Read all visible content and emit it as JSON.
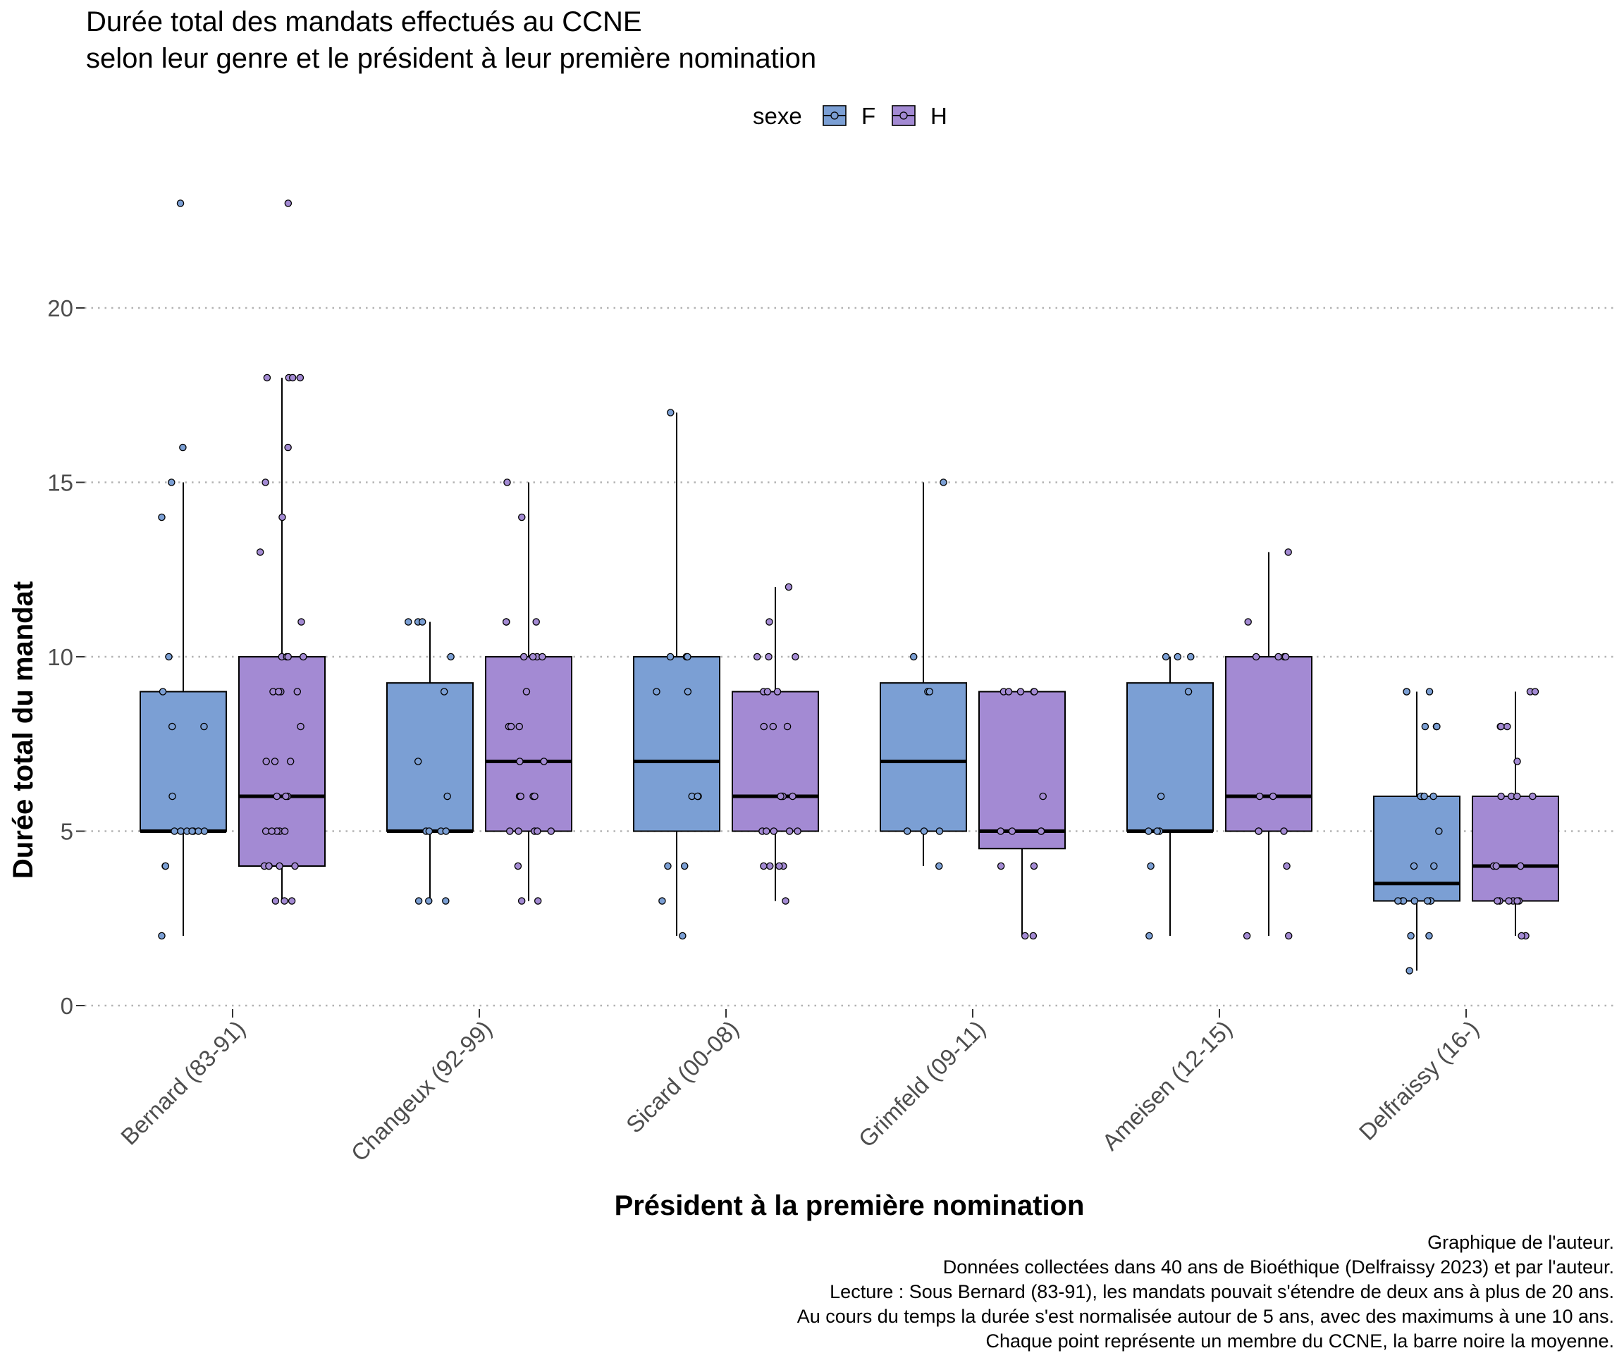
{
  "chart_data": {
    "type": "boxplot",
    "title": "Durée total des mandats effectués au CCNE",
    "subtitle": "selon leur genre et le président à leur première nomination",
    "xlabel": "Président à la première nomination",
    "ylabel": "Durée total du mandat",
    "ylim": [
      0,
      23
    ],
    "yticks": [
      0,
      5,
      10,
      15,
      20
    ],
    "grid": "horizontal-dotted",
    "legend": {
      "title": "sexe",
      "placement": "top-center",
      "entries": [
        {
          "key": "F",
          "label": "F",
          "color": "#7b9fd4"
        },
        {
          "key": "H",
          "label": "H",
          "color": "#a38ad3"
        }
      ]
    },
    "categories": [
      "Bernard (83-91)",
      "Changeux (92-99)",
      "Sicard (00-08)",
      "Grimfeld (09-11)",
      "Ameisen (12-15)",
      "Delfraissy (16-)"
    ],
    "series": [
      {
        "name": "F",
        "color": "#7b9fd4",
        "boxes": [
          {
            "min": 2,
            "q1": 5,
            "median": 5,
            "q3": 9,
            "max": 15
          },
          {
            "min": 3,
            "q1": 5,
            "median": 5,
            "q3": 9.25,
            "max": 11
          },
          {
            "min": 2,
            "q1": 5,
            "median": 7,
            "q3": 10,
            "max": 17
          },
          {
            "min": 4,
            "q1": 5,
            "median": 7,
            "q3": 9.25,
            "max": 15
          },
          {
            "min": 2,
            "q1": 5,
            "median": 5,
            "q3": 9.25,
            "max": 10
          },
          {
            "min": 1,
            "q1": 3,
            "median": 3.5,
            "q3": 6,
            "max": 9
          }
        ],
        "points": [
          [
            23,
            16,
            15,
            14,
            10,
            9,
            8,
            8,
            6,
            5,
            5,
            5,
            5,
            5,
            5,
            5,
            4,
            4,
            2
          ],
          [
            11,
            11,
            11,
            10,
            9,
            7,
            6,
            5,
            5,
            5,
            5,
            3,
            3,
            3
          ],
          [
            17,
            10,
            10,
            10,
            9,
            9,
            6,
            6,
            6,
            4,
            4,
            3,
            2
          ],
          [
            15,
            10,
            9,
            9,
            5,
            5,
            5,
            4
          ],
          [
            10,
            10,
            10,
            9,
            6,
            5,
            5,
            5,
            4,
            2
          ],
          [
            9,
            9,
            9,
            8,
            8,
            8,
            6,
            6,
            6,
            6,
            5,
            4,
            4,
            3,
            3,
            3,
            3,
            3,
            3,
            3,
            2,
            2,
            1
          ]
        ]
      },
      {
        "name": "H",
        "color": "#a38ad3",
        "boxes": [
          {
            "min": 3,
            "q1": 4,
            "median": 6,
            "q3": 10,
            "max": 18
          },
          {
            "min": 3,
            "q1": 5,
            "median": 7,
            "q3": 10,
            "max": 15
          },
          {
            "min": 3,
            "q1": 5,
            "median": 6,
            "q3": 9,
            "max": 12
          },
          {
            "min": 2,
            "q1": 4.5,
            "median": 5,
            "q3": 9,
            "max": 9
          },
          {
            "min": 2,
            "q1": 5,
            "median": 6,
            "q3": 10,
            "max": 13
          },
          {
            "min": 2,
            "q1": 3,
            "median": 4,
            "q3": 6,
            "max": 9
          }
        ],
        "points": [
          [
            23,
            18,
            18,
            18,
            18,
            16,
            15,
            14,
            13,
            11,
            10,
            10,
            10,
            10,
            9,
            9,
            9,
            9,
            8,
            7,
            7,
            7,
            6,
            6,
            6,
            5,
            5,
            5,
            5,
            5,
            4,
            4,
            4,
            4,
            4,
            3,
            3,
            3
          ],
          [
            15,
            14,
            11,
            11,
            11,
            10,
            10,
            10,
            10,
            9,
            8,
            8,
            8,
            7,
            7,
            6,
            6,
            6,
            6,
            5,
            5,
            5,
            5,
            5,
            4,
            3,
            3
          ],
          [
            12,
            11,
            10,
            10,
            10,
            9,
            9,
            9,
            8,
            8,
            8,
            6,
            6,
            6,
            6,
            5,
            5,
            5,
            5,
            5,
            4,
            4,
            4,
            4,
            3
          ],
          [
            9,
            9,
            9,
            9,
            9,
            6,
            5,
            5,
            5,
            5,
            4,
            4,
            2,
            2
          ],
          [
            13,
            11,
            10,
            10,
            10,
            10,
            6,
            6,
            5,
            5,
            5,
            4,
            2,
            2
          ],
          [
            9,
            9,
            8,
            8,
            8,
            7,
            6,
            6,
            6,
            6,
            4,
            4,
            4,
            3,
            3,
            3,
            3,
            3,
            3,
            2,
            2
          ]
        ]
      }
    ],
    "caption": [
      "Graphique de l'auteur.",
      "Données collectées dans 40 ans de Bioéthique (Delfraissy 2023) et par l'auteur.",
      "Lecture : Sous Bernard (83-91), les mandats pouvait s'étendre de deux ans à plus de 20 ans.",
      "Au cours du temps la durée s'est normalisée autour de 5 ans, avec des maximums à une 10 ans.",
      "Chaque point représente un membre du CCNE, la barre noire la moyenne."
    ]
  }
}
